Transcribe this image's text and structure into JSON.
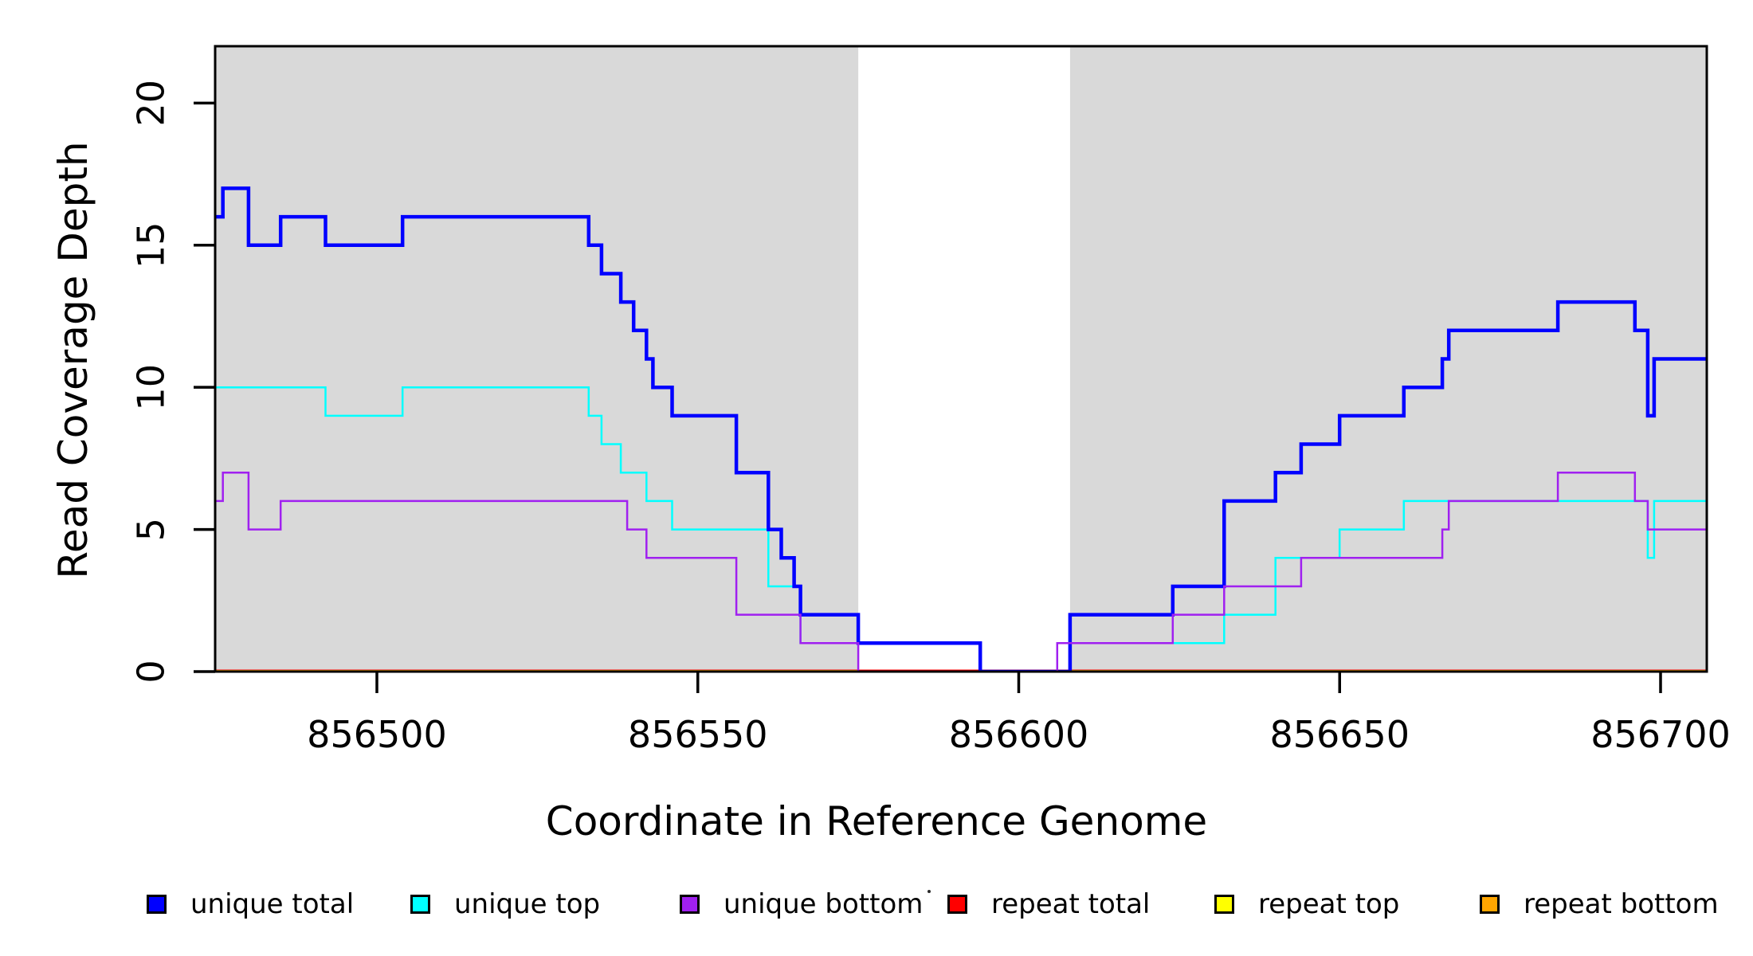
{
  "chart_data": {
    "type": "line",
    "subtype": "step",
    "title": "",
    "xlabel": "Coordinate in Reference Genome",
    "ylabel": "Read Coverage Depth",
    "xlim": [
      856474.8,
      856707.2
    ],
    "ylim": [
      0,
      22
    ],
    "x_ticks": [
      856500,
      856550,
      856600,
      856650,
      856700
    ],
    "y_ticks": [
      0,
      5,
      10,
      15,
      20
    ],
    "grid": false,
    "panel_background": "#ffffff",
    "shaded_regions": {
      "color": "#D9D9D9",
      "ranges": [
        [
          856474.8,
          856575
        ],
        [
          856608,
          856707.2
        ]
      ]
    },
    "legend_position": "bottom",
    "legend": {
      "items": [
        {
          "label": "unique total",
          "color": "#0000FF"
        },
        {
          "label": "unique top",
          "color": "#00FFFF"
        },
        {
          "label": "unique bottom",
          "color": "#A020F0"
        },
        {
          "label": "repeat total",
          "color": "#FF0000"
        },
        {
          "label": "repeat top",
          "color": "#FFFF00"
        },
        {
          "label": "repeat bottom",
          "color": "#FFA500"
        }
      ]
    },
    "series": [
      {
        "name": "repeat total",
        "color": "#FF0000",
        "line_width": 5,
        "steps": [
          [
            856474.8,
            0
          ]
        ]
      },
      {
        "name": "repeat top",
        "color": "#FFFF00",
        "line_width": 3,
        "steps": [
          [
            856474.8,
            0
          ]
        ]
      },
      {
        "name": "repeat bottom",
        "color": "#FFA500",
        "line_width": 4,
        "steps": [
          [
            856474.8,
            0
          ]
        ],
        "draw_ranges": [
          [
            856474.8,
            856575
          ],
          [
            856608,
            856707.2
          ]
        ]
      },
      {
        "name": "unique top",
        "color": "#00FFFF",
        "line_width": 2.5,
        "steps": [
          [
            856474.8,
            10
          ],
          [
            856492,
            9
          ],
          [
            856504,
            10
          ],
          [
            856533,
            9
          ],
          [
            856535,
            8
          ],
          [
            856538,
            7
          ],
          [
            856542,
            6
          ],
          [
            856546,
            5
          ],
          [
            856561,
            3
          ],
          [
            856566,
            1
          ],
          [
            856594,
            0
          ],
          [
            856608,
            1
          ],
          [
            856632,
            2
          ],
          [
            856640,
            4
          ],
          [
            856650,
            5
          ],
          [
            856660,
            6
          ],
          [
            856698,
            4
          ],
          [
            856699,
            6
          ]
        ]
      },
      {
        "name": "unique total",
        "color": "#0000FF",
        "line_width": 4.5,
        "steps": [
          [
            856474.8,
            16
          ],
          [
            856476,
            17
          ],
          [
            856480,
            15
          ],
          [
            856485,
            16
          ],
          [
            856492,
            15
          ],
          [
            856504,
            16
          ],
          [
            856533,
            15
          ],
          [
            856535,
            14
          ],
          [
            856538,
            13
          ],
          [
            856540,
            12
          ],
          [
            856542,
            11
          ],
          [
            856543,
            10
          ],
          [
            856546,
            9
          ],
          [
            856556,
            7
          ],
          [
            856561,
            5
          ],
          [
            856563,
            4
          ],
          [
            856565,
            3
          ],
          [
            856566,
            2
          ],
          [
            856575,
            1
          ],
          [
            856594,
            0
          ],
          [
            856608,
            2
          ],
          [
            856624,
            3
          ],
          [
            856632,
            6
          ],
          [
            856640,
            7
          ],
          [
            856644,
            8
          ],
          [
            856650,
            9
          ],
          [
            856660,
            10
          ],
          [
            856666,
            11
          ],
          [
            856667,
            12
          ],
          [
            856684,
            13
          ],
          [
            856696,
            12
          ],
          [
            856698,
            9
          ],
          [
            856699,
            11
          ]
        ]
      },
      {
        "name": "unique bottom",
        "color": "#A020F0",
        "line_width": 2.5,
        "steps": [
          [
            856474.8,
            6
          ],
          [
            856476,
            7
          ],
          [
            856480,
            5
          ],
          [
            856485,
            6
          ],
          [
            856539,
            5
          ],
          [
            856542,
            4
          ],
          [
            856556,
            2
          ],
          [
            856566,
            1
          ],
          [
            856575,
            0
          ],
          [
            856606,
            1
          ],
          [
            856624,
            2
          ],
          [
            856632,
            3
          ],
          [
            856644,
            4
          ],
          [
            856666,
            5
          ],
          [
            856667,
            6
          ],
          [
            856684,
            7
          ],
          [
            856696,
            6
          ],
          [
            856698,
            5
          ]
        ]
      }
    ]
  }
}
